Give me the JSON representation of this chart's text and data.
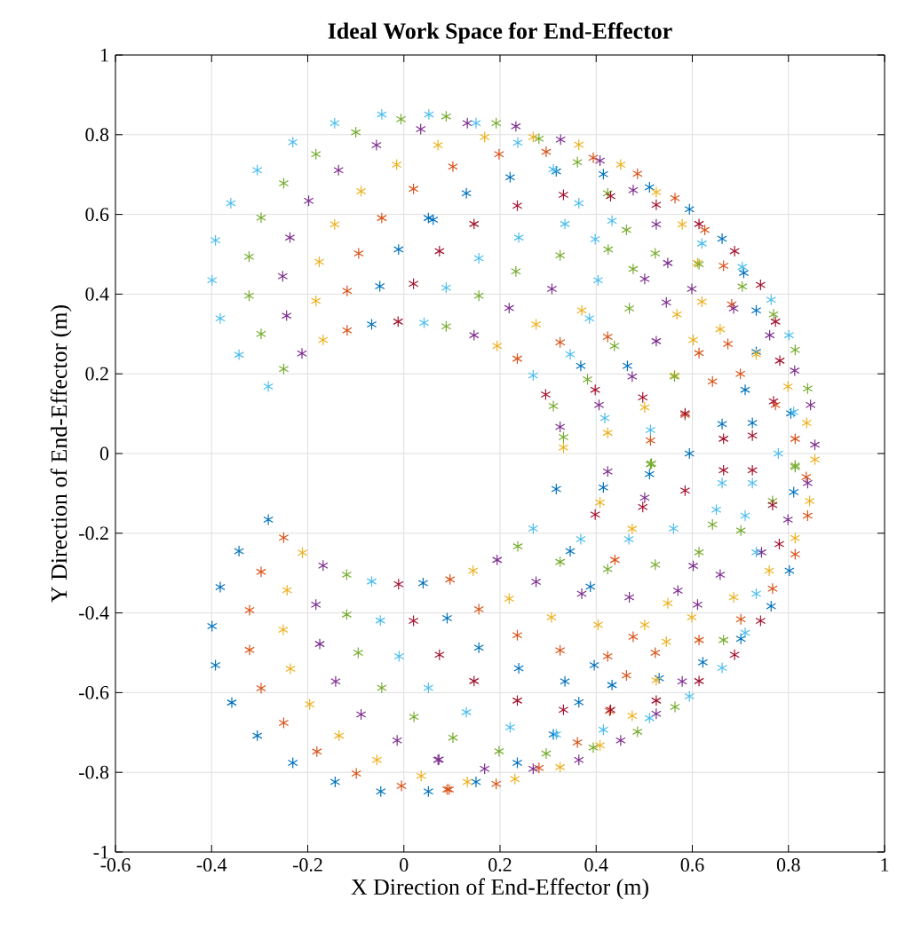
{
  "chart_data": {
    "type": "scatter",
    "title": "**Ideal Work Space for End-Effector**",
    "xlabel": "X Direction of End-Effector (m)",
    "ylabel": "Y Direction of End-Effector (m)",
    "xlim": [
      -0.6,
      1
    ],
    "ylim": [
      -1,
      1
    ],
    "xticks": [
      -0.6,
      -0.4,
      -0.2,
      0,
      0.2,
      0.4,
      0.6,
      0.8,
      1
    ],
    "yticks": [
      -1,
      -0.8,
      -0.6,
      -0.4,
      -0.2,
      0,
      0.2,
      0.4,
      0.6,
      0.8,
      1
    ],
    "grid": true,
    "marker": "cross",
    "series": [
      {
        "color": "#0072bd",
        "x": [
          0.051,
          -0.011,
          -0.05,
          -0.067,
          -0.282,
          -0.343,
          -0.382,
          -0.399,
          -0.392,
          -0.358,
          -0.305,
          -0.231,
          -0.143,
          -0.048,
          0.051,
          0.04,
          0.09,
          0.13,
          0.221,
          0.317,
          0.415,
          0.511,
          0.594,
          0.662,
          0.707,
          0.733,
          0.733,
          0.368,
          0.465,
          0.71,
          0.805,
          0.725,
          0.662,
          0.594,
          0.511,
          0.061,
          0.317,
          0.415,
          0.346,
          0.388,
          0.396,
          0.335,
          0.239,
          0.156,
          0.433,
          0.364,
          0.311,
          0.236,
          0.15,
          0.531,
          0.622,
          0.701,
          0.764,
          0.802,
          0.811
        ],
        "values": [
          0.591,
          0.512,
          0.42,
          0.324,
          -0.166,
          -0.245,
          -0.335,
          -0.433,
          -0.531,
          -0.625,
          -0.708,
          -0.776,
          -0.824,
          -0.848,
          -0.848,
          -0.325,
          -0.413,
          0.653,
          0.693,
          0.708,
          0.701,
          0.668,
          0.613,
          0.539,
          0.453,
          0.359,
          0.255,
          0.22,
          0.22,
          0.16,
          0.101,
          0.077,
          0.074,
          0,
          -0.052,
          0.587,
          -0.089,
          -0.085,
          -0.245,
          -0.334,
          -0.531,
          -0.572,
          -0.539,
          -0.487,
          -0.581,
          -0.624,
          -0.705,
          -0.776,
          -0.824,
          -0.564,
          -0.524,
          -0.465,
          -0.383,
          -0.294,
          -0.097
        ]
      },
      {
        "color": "#d95319",
        "x": [
          0.02,
          -0.046,
          -0.094,
          -0.118,
          -0.118,
          -0.25,
          -0.297,
          -0.321,
          -0.321,
          -0.297,
          -0.25,
          -0.181,
          -0.099,
          -0.005,
          0.09,
          0.102,
          0.198,
          0.296,
          0.394,
          0.486,
          0.564,
          0.626,
          0.665,
          0.682,
          0.674,
          0.325,
          0.236,
          0.424,
          0.614,
          0.7,
          0.773,
          0.814,
          0.837,
          0.513,
          0.585,
          0.642,
          0.094,
          0.192,
          0.281,
          0.361,
          0.428,
          0.463,
          0.096,
          0.156,
          0.236,
          0.325,
          0.424,
          0.523,
          0.614,
          0.701,
          0.767,
          0.814,
          0.84,
          0.477,
          0.439
        ],
        "values": [
          0.664,
          0.591,
          0.502,
          0.408,
          0.309,
          -0.211,
          -0.297,
          -0.393,
          -0.493,
          -0.589,
          -0.676,
          -0.748,
          -0.803,
          -0.834,
          -0.843,
          0.72,
          0.751,
          0.757,
          0.742,
          0.702,
          0.641,
          0.561,
          0.471,
          0.374,
          0.275,
          0.279,
          0.238,
          0.293,
          0.252,
          0.2,
          0.122,
          0.037,
          -0.059,
          0.033,
          0.097,
          0.181,
          -0.843,
          -0.829,
          -0.789,
          -0.725,
          -0.646,
          -0.557,
          -0.316,
          -0.391,
          -0.456,
          -0.494,
          -0.509,
          -0.5,
          -0.468,
          -0.416,
          -0.339,
          -0.253,
          -0.156,
          -0.46,
          -0.267
        ]
      },
      {
        "color": "#edb120",
        "x": [
          -0.015,
          0.071,
          -0.089,
          -0.144,
          -0.176,
          -0.183,
          -0.168,
          -0.211,
          -0.243,
          -0.251,
          -0.236,
          -0.196,
          -0.135,
          -0.056,
          0.036,
          0.168,
          0.269,
          0.364,
          0.451,
          0.525,
          0.579,
          0.611,
          0.62,
          0.602,
          0.275,
          0.194,
          0.37,
          0.568,
          0.658,
          0.733,
          0.799,
          0.838,
          0.855,
          0.563,
          0.501,
          0.424,
          0.332,
          0.144,
          0.219,
          0.307,
          0.404,
          0.501,
          0.599,
          0.686,
          0.76,
          0.814,
          0.844,
          0.132,
          0.231,
          0.325,
          0.408,
          0.475,
          0.525,
          0.546,
          0.549,
          0.475,
          0.408
        ],
        "values": [
          0.725,
          0.774,
          0.658,
          0.575,
          0.481,
          0.383,
          0.285,
          -0.249,
          -0.343,
          -0.442,
          -0.54,
          -0.629,
          -0.708,
          -0.769,
          -0.809,
          0.794,
          0.794,
          0.775,
          0.725,
          0.656,
          0.575,
          0.478,
          0.381,
          0.285,
          0.324,
          0.27,
          0.359,
          0.349,
          0.312,
          0.249,
          0.168,
          0.077,
          -0.015,
          0.196,
          0.116,
          0.052,
          0.015,
          -0.294,
          -0.364,
          -0.411,
          -0.43,
          -0.43,
          -0.411,
          -0.361,
          -0.294,
          -0.212,
          -0.119,
          -0.824,
          -0.817,
          -0.787,
          -0.732,
          -0.658,
          -0.569,
          -0.472,
          -0.376,
          -0.189,
          -0.123
        ]
      },
      {
        "color": "#7e2f8e",
        "x": [
          -0.057,
          0.035,
          -0.136,
          -0.198,
          -0.237,
          -0.252,
          -0.244,
          -0.212,
          -0.168,
          -0.183,
          -0.175,
          -0.142,
          -0.089,
          -0.014,
          0.071,
          0.132,
          0.233,
          0.326,
          0.408,
          0.477,
          0.525,
          0.308,
          0.219,
          0.146,
          0.501,
          0.546,
          0.549,
          0.599,
          0.525,
          0.475,
          0.406,
          0.325,
          0.686,
          0.761,
          0.813,
          0.846,
          0.855,
          0.84,
          0.424,
          0.194,
          0.275,
          0.37,
          0.469,
          0.57,
          0.658,
          0.744,
          0.799,
          0.073,
          0.168,
          0.269,
          0.364,
          0.451,
          0.525,
          0.579,
          0.611,
          0.602,
          0.501
        ],
        "values": [
          0.774,
          0.814,
          0.711,
          0.634,
          0.542,
          0.445,
          0.346,
          0.251,
          -0.281,
          -0.379,
          -0.478,
          -0.572,
          -0.655,
          -0.72,
          -0.769,
          0.829,
          0.821,
          0.788,
          0.735,
          0.661,
          0.575,
          0.413,
          0.365,
          0.297,
          0.438,
          0.379,
          0.478,
          0.413,
          0.282,
          0.193,
          0.122,
          0.067,
          0.364,
          0.297,
          0.208,
          0.122,
          0.022,
          -0.074,
          -0.045,
          -0.267,
          -0.322,
          -0.352,
          -0.361,
          -0.344,
          -0.304,
          -0.248,
          -0.166,
          -0.768,
          -0.791,
          -0.791,
          -0.769,
          -0.72,
          -0.653,
          -0.572,
          -0.379,
          -0.282,
          -0.111
        ]
      },
      {
        "color": "#77ac30",
        "x": [
          -0.1,
          -0.006,
          0.088,
          -0.183,
          -0.25,
          -0.297,
          -0.322,
          -0.322,
          -0.297,
          -0.25,
          0.088,
          -0.119,
          -0.119,
          -0.095,
          -0.046,
          0.021,
          0.192,
          0.281,
          0.361,
          0.424,
          0.463,
          0.325,
          0.233,
          0.156,
          0.425,
          0.477,
          0.469,
          0.438,
          0.382,
          0.311,
          0.523,
          0.614,
          0.704,
          0.769,
          0.814,
          0.84,
          0.814,
          0.563,
          0.513,
          0.332,
          0.237,
          0.325,
          0.424,
          0.523,
          0.614,
          0.701,
          0.767,
          0.814,
          0.102,
          0.198,
          0.296,
          0.394,
          0.486,
          0.564,
          0.665,
          0.642,
          0.515
        ],
        "values": [
          0.806,
          0.839,
          0.846,
          0.751,
          0.678,
          0.592,
          0.494,
          0.396,
          0.3,
          0.212,
          0.319,
          -0.304,
          -0.404,
          -0.5,
          -0.588,
          -0.661,
          0.829,
          0.79,
          0.731,
          0.653,
          0.561,
          0.497,
          0.457,
          0.396,
          0.512,
          0.463,
          0.364,
          0.27,
          0.186,
          0.119,
          0.502,
          0.475,
          0.419,
          0.349,
          0.26,
          0.163,
          -0.03,
          0.193,
          -0.027,
          0.041,
          -0.233,
          -0.272,
          -0.29,
          -0.279,
          -0.248,
          -0.193,
          -0.119,
          -0.034,
          -0.713,
          -0.747,
          -0.753,
          -0.738,
          -0.698,
          -0.636,
          -0.468,
          -0.178,
          -0.025
        ]
      },
      {
        "color": "#4dbeee",
        "x": [
          -0.144,
          -0.046,
          0.052,
          -0.231,
          -0.305,
          -0.36,
          -0.392,
          -0.399,
          -0.382,
          -0.343,
          -0.282,
          0.042,
          0.088,
          -0.067,
          -0.049,
          -0.01,
          0.051,
          0.15,
          0.237,
          0.311,
          0.364,
          0.335,
          0.239,
          0.156,
          0.433,
          0.398,
          0.404,
          0.386,
          0.346,
          0.269,
          0.62,
          0.704,
          0.764,
          0.801,
          0.811,
          0.779,
          0.513,
          0.418,
          0.662,
          0.13,
          0.221,
          0.317,
          0.415,
          0.511,
          0.594,
          0.662,
          0.71,
          0.733,
          0.733,
          0.71,
          0.65,
          0.725,
          0.368,
          0.269,
          0.468,
          0.561
        ],
        "values": [
          0.829,
          0.851,
          0.851,
          0.781,
          0.711,
          0.628,
          0.535,
          0.435,
          0.339,
          0.248,
          0.168,
          0.328,
          0.416,
          -0.321,
          -0.419,
          -0.509,
          -0.588,
          0.829,
          0.78,
          0.713,
          0.628,
          0.576,
          0.542,
          0.49,
          0.584,
          0.538,
          0.435,
          0.339,
          0.249,
          0.196,
          0.527,
          0.468,
          0.386,
          0.297,
          0.104,
          0,
          0.059,
          0.089,
          -0.074,
          -0.649,
          -0.687,
          -0.705,
          -0.693,
          -0.664,
          -0.609,
          -0.538,
          -0.45,
          -0.352,
          -0.248,
          -0.156,
          -0.141,
          -0.074,
          -0.215,
          -0.188,
          -0.215,
          -0.188
        ]
      },
      {
        "color": "#a2142f",
        "x": [
          0.074,
          0.02,
          -0.012,
          -0.011,
          0.02,
          0.074,
          0.146,
          0.236,
          0.332,
          0.43,
          0.525,
          0.614,
          0.688,
          0.742,
          0.773,
          0.782,
          0.769,
          0.398,
          0.497,
          0.585,
          0.665,
          0.725,
          0.725,
          0.665,
          0.295,
          0.146,
          0.236,
          0.332,
          0.43,
          0.525,
          0.614,
          0.688,
          0.742,
          0.781,
          0.767,
          0.585,
          0.398,
          0.497
        ],
        "values": [
          0.508,
          0.426,
          0.331,
          -0.328,
          -0.42,
          -0.505,
          0.576,
          0.622,
          0.649,
          0.646,
          0.624,
          0.576,
          0.508,
          0.423,
          0.331,
          0.233,
          0.131,
          0.16,
          0.141,
          0.101,
          0.037,
          0.045,
          -0.042,
          -0.042,
          0.148,
          -0.571,
          -0.62,
          -0.643,
          -0.643,
          -0.62,
          -0.571,
          -0.505,
          -0.42,
          -0.227,
          -0.129,
          -0.093,
          -0.153,
          -0.134
        ]
      }
    ]
  }
}
